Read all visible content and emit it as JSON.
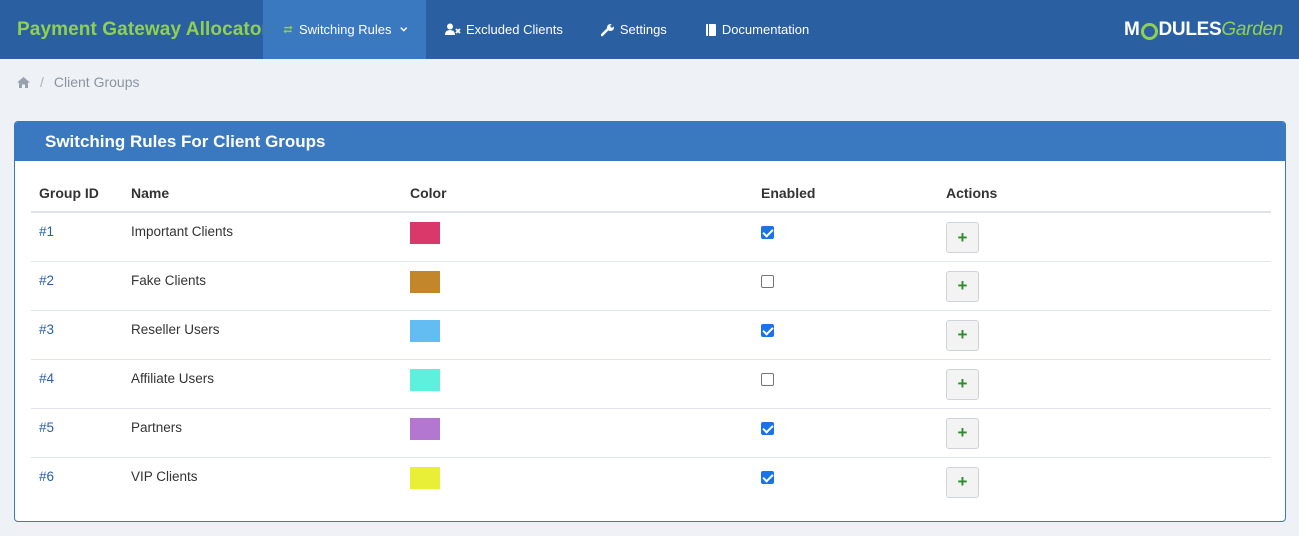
{
  "app": {
    "title": "Payment Gateway Allocator"
  },
  "nav": [
    {
      "label": "Switching Rules",
      "icon": "refresh-icon",
      "active": true,
      "dropdown": true
    },
    {
      "label": "Excluded Clients",
      "icon": "user-exclude-icon"
    },
    {
      "label": "Settings",
      "icon": "wrench-icon"
    },
    {
      "label": "Documentation",
      "icon": "book-icon"
    }
  ],
  "logo": {
    "part1": "M",
    "part2": "DULES",
    "part3": "Garden"
  },
  "breadcrumb": {
    "home_icon": "home-icon",
    "current": "Client Groups"
  },
  "panel": {
    "title": "Switching Rules For Client Groups"
  },
  "table": {
    "headers": {
      "group_id": "Group ID",
      "name": "Name",
      "color": "Color",
      "enabled": "Enabled",
      "actions": "Actions"
    },
    "rows": [
      {
        "id": "#1",
        "name": "Important Clients",
        "color": "#d9386a",
        "enabled": true
      },
      {
        "id": "#2",
        "name": "Fake Clients",
        "color": "#c4862a",
        "enabled": false
      },
      {
        "id": "#3",
        "name": "Reseller Users",
        "color": "#63bdf2",
        "enabled": true
      },
      {
        "id": "#4",
        "name": "Affiliate Users",
        "color": "#5ef0dc",
        "enabled": false
      },
      {
        "id": "#5",
        "name": "Partners",
        "color": "#b377d2",
        "enabled": true
      },
      {
        "id": "#6",
        "name": "VIP Clients",
        "color": "#e8ef36",
        "enabled": true
      }
    ],
    "action_label": "+"
  },
  "colors": {
    "topbar": "#2a5fa2",
    "accent": "#3a78bf",
    "brand_green": "#8fd14f"
  }
}
